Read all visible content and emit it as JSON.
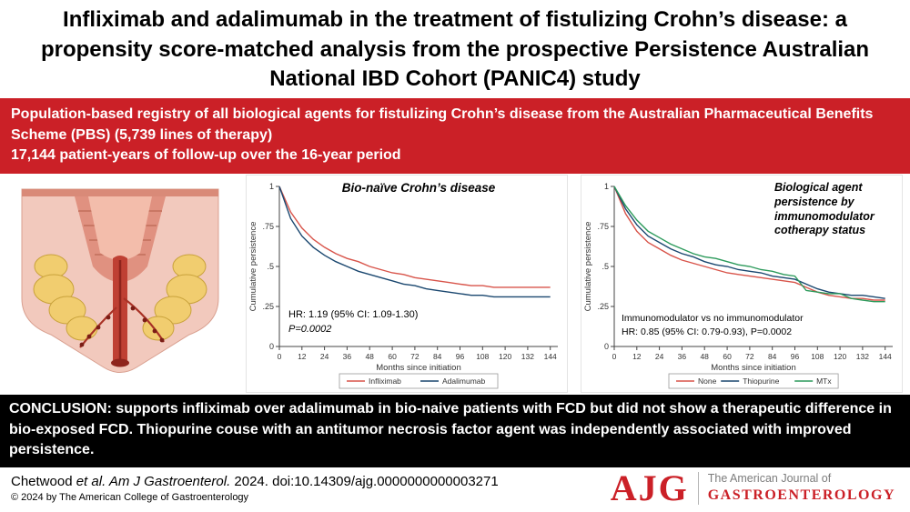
{
  "title": "Infliximab and adalimumab in the treatment of fistulizing Crohn’s disease:  a propensity score-matched analysis from the prospective Persistence Australian National IBD Cohort (PANIC4) study",
  "banner": {
    "line1": "Population-based registry of all biological agents for fistulizing Crohn’s disease from the Australian Pharmaceutical Benefits Scheme (PBS) (5,739 lines of therapy)",
    "line2": "17,144 patient-years of follow-up  over the 16-year period"
  },
  "conclusion": "CONCLUSION: supports infliximab over adalimumab in bio-naive patients with FCD but did not show a therapeutic difference in bio-exposed FCD. Thiopurine couse with an antitumor necrosis factor agent was independently associated with improved persistence.",
  "footer": {
    "citation_author": "Chetwood ",
    "citation_italic": "et al. Am J Gastroenterol.",
    "citation_rest": " 2024. doi:10.14309/ajg.0000000000003271",
    "copyright": "© 2024 by The American College of Gastroenterology",
    "logo": {
      "abbr": "AJG",
      "line1": "The American Journal of",
      "line2": "GASTROENTEROLOGY"
    }
  },
  "colors": {
    "banner_red": "#cb2027",
    "logo_red": "#cb2027",
    "axis": "#444444"
  },
  "chart_data": [
    {
      "type": "line",
      "title": "Bio-naïve Crohn’s disease",
      "xlabel": "Months since initiation",
      "ylabel": "Cumulative persistence",
      "xlim": [
        0,
        148
      ],
      "ylim": [
        0,
        1
      ],
      "x_ticks": [
        0,
        12,
        24,
        36,
        48,
        60,
        72,
        84,
        96,
        108,
        120,
        132,
        144
      ],
      "y_ticks": [
        0,
        0.25,
        0.5,
        0.75,
        1
      ],
      "y_tick_labels": [
        "0",
        ".25",
        ".5",
        ".75",
        "1"
      ],
      "grid": false,
      "legend_position": "bottom",
      "annotation_line1": "HR: 1.19 (95% CI: 1.09-1.30)",
      "annotation_line2": "P=0.0002",
      "series": [
        {
          "name": "Infliximab",
          "color": "#d8544a",
          "x": [
            0,
            6,
            12,
            18,
            24,
            30,
            36,
            42,
            48,
            54,
            60,
            66,
            72,
            78,
            84,
            90,
            96,
            102,
            108,
            114,
            120,
            126,
            132,
            138,
            144
          ],
          "y": [
            1,
            0.84,
            0.74,
            0.67,
            0.62,
            0.58,
            0.55,
            0.53,
            0.5,
            0.48,
            0.46,
            0.45,
            0.43,
            0.42,
            0.41,
            0.4,
            0.39,
            0.38,
            0.38,
            0.37,
            0.37,
            0.37,
            0.37,
            0.37,
            0.37
          ]
        },
        {
          "name": "Adalimumab",
          "color": "#1a476f",
          "x": [
            0,
            6,
            12,
            18,
            24,
            30,
            36,
            42,
            48,
            54,
            60,
            66,
            72,
            78,
            84,
            90,
            96,
            102,
            108,
            114,
            120,
            126,
            132,
            138,
            144
          ],
          "y": [
            1,
            0.8,
            0.69,
            0.62,
            0.57,
            0.53,
            0.5,
            0.47,
            0.45,
            0.43,
            0.41,
            0.39,
            0.38,
            0.36,
            0.35,
            0.34,
            0.33,
            0.32,
            0.32,
            0.31,
            0.31,
            0.31,
            0.31,
            0.31,
            0.31
          ]
        }
      ]
    },
    {
      "type": "line",
      "title": "Biological agent\npersistence by\nimmunomodulator\ncotherapy status",
      "xlabel": "Months since initiation",
      "ylabel": "Cumulative persistence",
      "xlim": [
        0,
        148
      ],
      "ylim": [
        0,
        1
      ],
      "x_ticks": [
        0,
        12,
        24,
        36,
        48,
        60,
        72,
        84,
        96,
        108,
        120,
        132,
        144
      ],
      "y_ticks": [
        0,
        0.25,
        0.5,
        0.75,
        1
      ],
      "y_tick_labels": [
        "0",
        ".25",
        ".5",
        ".75",
        "1"
      ],
      "grid": false,
      "legend_position": "bottom",
      "annotation_line1": "Immunomodulator vs no immunomodulator",
      "annotation_line2": "HR: 0.85 (95% CI: 0.79-0.93), P=0.0002",
      "series": [
        {
          "name": "None",
          "color": "#d8544a",
          "x": [
            0,
            6,
            12,
            18,
            24,
            30,
            36,
            42,
            48,
            54,
            60,
            66,
            72,
            78,
            84,
            90,
            96,
            102,
            108,
            114,
            120,
            126,
            132,
            138,
            144
          ],
          "y": [
            1,
            0.83,
            0.72,
            0.65,
            0.61,
            0.57,
            0.54,
            0.52,
            0.5,
            0.48,
            0.46,
            0.45,
            0.44,
            0.43,
            0.42,
            0.41,
            0.4,
            0.37,
            0.34,
            0.32,
            0.31,
            0.3,
            0.3,
            0.29,
            0.29
          ]
        },
        {
          "name": "Thiopurine",
          "color": "#1a476f",
          "x": [
            0,
            6,
            12,
            18,
            24,
            30,
            36,
            42,
            48,
            54,
            60,
            66,
            72,
            78,
            84,
            90,
            96,
            102,
            108,
            114,
            120,
            126,
            132,
            138,
            144
          ],
          "y": [
            1,
            0.86,
            0.76,
            0.69,
            0.65,
            0.61,
            0.58,
            0.56,
            0.53,
            0.51,
            0.5,
            0.48,
            0.47,
            0.46,
            0.44,
            0.43,
            0.42,
            0.39,
            0.36,
            0.34,
            0.33,
            0.32,
            0.32,
            0.31,
            0.3
          ]
        },
        {
          "name": "MTx",
          "color": "#2c9a5b",
          "x": [
            0,
            6,
            12,
            18,
            24,
            30,
            36,
            42,
            48,
            54,
            60,
            66,
            72,
            78,
            84,
            90,
            96,
            102,
            108,
            114,
            120,
            126,
            132,
            138,
            144
          ],
          "y": [
            1,
            0.88,
            0.79,
            0.72,
            0.68,
            0.64,
            0.61,
            0.58,
            0.56,
            0.55,
            0.53,
            0.51,
            0.5,
            0.48,
            0.47,
            0.45,
            0.44,
            0.35,
            0.34,
            0.33,
            0.33,
            0.3,
            0.29,
            0.28,
            0.28
          ]
        }
      ]
    }
  ]
}
